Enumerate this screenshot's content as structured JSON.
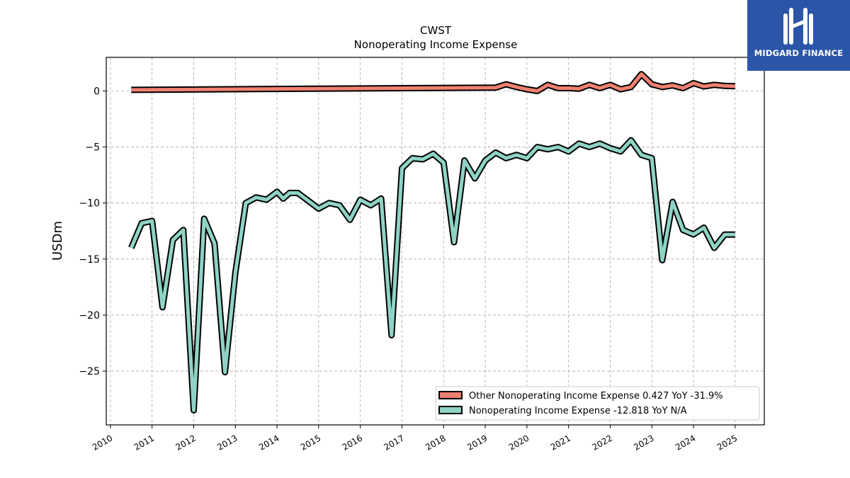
{
  "brand": {
    "name": "MIDGARD FINANCE",
    "bg_color": "#2b56a8"
  },
  "chart_data": {
    "type": "line",
    "title": "CWST",
    "subtitle": "Nonoperating Income Expense",
    "xlabel": "",
    "ylabel": "USDm",
    "xlim": [
      2009.9,
      2025.7
    ],
    "ylim": [
      -29.8,
      3.0
    ],
    "yticks": [
      0,
      -5,
      -10,
      -15,
      -20,
      -25
    ],
    "xticks": [
      "2010",
      "2011",
      "2012",
      "2013",
      "2014",
      "2015",
      "2016",
      "2017",
      "2018",
      "2019",
      "2020",
      "2021",
      "2022",
      "2023",
      "2024",
      "2025"
    ],
    "grid": true,
    "legend_position": "lower-right",
    "series": [
      {
        "name": "Other Nonoperating Income Expense  0.427 YoY -31.9%",
        "color": "#f08070",
        "x": [
          2010.5,
          2019.25,
          2019.5,
          2019.75,
          2020.0,
          2020.25,
          2020.5,
          2020.75,
          2021.0,
          2021.25,
          2021.5,
          2021.75,
          2022.0,
          2022.25,
          2022.5,
          2022.75,
          2023.0,
          2023.25,
          2023.5,
          2023.75,
          2024.0,
          2024.25,
          2024.5,
          2024.75,
          2025.0
        ],
        "values": [
          0.1,
          0.3,
          0.6,
          0.35,
          0.15,
          0.0,
          0.55,
          0.25,
          0.25,
          0.2,
          0.55,
          0.25,
          0.55,
          0.15,
          0.35,
          1.5,
          0.6,
          0.35,
          0.5,
          0.25,
          0.7,
          0.4,
          0.55,
          0.45,
          0.427
        ]
      },
      {
        "name": "Nonoperating Income Expense  -12.818 YoY N/A",
        "color": "#8fd3c4",
        "x": [
          2010.5,
          2010.75,
          2011.0,
          2011.25,
          2011.5,
          2011.75,
          2012.0,
          2012.25,
          2012.5,
          2012.75,
          2013.0,
          2013.25,
          2013.5,
          2013.75,
          2014.0,
          2014.15,
          2014.3,
          2014.5,
          2014.75,
          2015.0,
          2015.25,
          2015.5,
          2015.75,
          2016.0,
          2016.25,
          2016.5,
          2016.75,
          2017.0,
          2017.25,
          2017.5,
          2017.75,
          2018.0,
          2018.25,
          2018.5,
          2018.75,
          2019.0,
          2019.25,
          2019.5,
          2019.75,
          2020.0,
          2020.25,
          2020.5,
          2020.75,
          2021.0,
          2021.25,
          2021.5,
          2021.75,
          2022.0,
          2022.25,
          2022.5,
          2022.75,
          2023.0,
          2023.25,
          2023.5,
          2023.75,
          2024.0,
          2024.25,
          2024.5,
          2024.75,
          2025.0
        ],
        "values": [
          -14.0,
          -11.8,
          -11.6,
          -19.3,
          -13.3,
          -12.4,
          -28.5,
          -11.4,
          -13.6,
          -25.1,
          -16.2,
          -10.0,
          -9.5,
          -9.7,
          -9.0,
          -9.6,
          -9.1,
          -9.1,
          -9.8,
          -10.5,
          -10.0,
          -10.2,
          -11.5,
          -9.7,
          -10.2,
          -9.6,
          -21.8,
          -6.9,
          -6.0,
          -6.1,
          -5.6,
          -6.4,
          -13.5,
          -6.2,
          -7.8,
          -6.2,
          -5.5,
          -6.0,
          -5.7,
          -6.0,
          -5.0,
          -5.2,
          -5.0,
          -5.4,
          -4.7,
          -5.0,
          -4.7,
          -5.1,
          -5.4,
          -4.4,
          -5.7,
          -6.0,
          -15.1,
          -9.9,
          -12.4,
          -12.8,
          -12.2,
          -14.0,
          -12.818,
          -12.818
        ]
      }
    ]
  }
}
